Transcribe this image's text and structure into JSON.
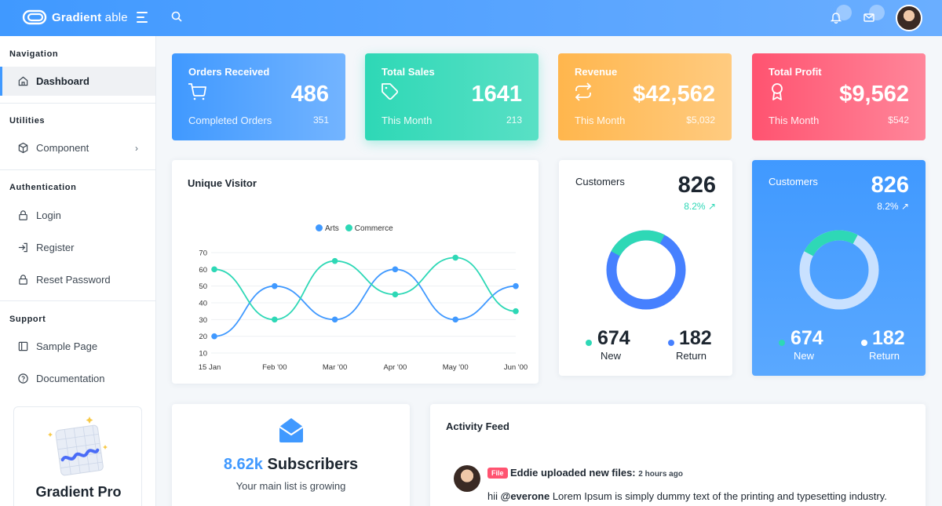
{
  "header": {
    "logo_main": "Gradient",
    "logo_sub": "able"
  },
  "sidebar": {
    "sections": [
      {
        "caption": "Navigation",
        "items": [
          {
            "label": "Dashboard",
            "icon": "home-icon"
          }
        ]
      },
      {
        "caption": "Utilities",
        "items": [
          {
            "label": "Component",
            "icon": "cube-icon"
          }
        ]
      },
      {
        "caption": "Authentication",
        "items": [
          {
            "label": "Login",
            "icon": "lock-icon"
          },
          {
            "label": "Register",
            "icon": "login-icon"
          },
          {
            "label": "Reset Password",
            "icon": "lock-icon"
          }
        ]
      },
      {
        "caption": "Support",
        "items": [
          {
            "label": "Sample Page",
            "icon": "sidebar-icon"
          },
          {
            "label": "Documentation",
            "icon": "help-circle-icon"
          }
        ]
      }
    ],
    "promo_title": "Gradient Pro"
  },
  "stats": [
    {
      "title": "Orders Received",
      "value": "486",
      "sub_label": "Completed Orders",
      "sub_value": "351",
      "icon": "cart-icon",
      "color": "#4099ff"
    },
    {
      "title": "Total Sales",
      "value": "1641",
      "sub_label": "This Month",
      "sub_value": "213",
      "icon": "tag-icon",
      "color": "#2ed8b6"
    },
    {
      "title": "Revenue",
      "value": "$42,562",
      "sub_label": "This Month",
      "sub_value": "$5,032",
      "icon": "repeat-icon",
      "color": "#ffb64d"
    },
    {
      "title": "Total Profit",
      "value": "$9,562",
      "sub_label": "This Month",
      "sub_value": "$542",
      "icon": "award-icon",
      "color": "#ff5370"
    }
  ],
  "visitor": {
    "title": "Unique Visitor"
  },
  "customers": [
    {
      "title": "Customers",
      "value": "826",
      "change": "8.2%",
      "new_value": "674",
      "new_label": "New",
      "return_value": "182",
      "return_label": "Return"
    },
    {
      "title": "Customers",
      "value": "826",
      "change": "8.2%",
      "new_value": "674",
      "new_label": "New",
      "return_value": "182",
      "return_label": "Return"
    }
  ],
  "subscribers": {
    "count": "8.62k",
    "label": "Subscribers",
    "sub": "Your main list is growing"
  },
  "activity": {
    "title": "Activity Feed",
    "badge": "File",
    "headline": "Eddie uploaded new files:",
    "time": "2 hours ago",
    "text_prefix": "hii",
    "mention": "@everone",
    "text_rest": "Lorem Ipsum is simply dummy text of the printing and typesetting industry."
  },
  "colors": {
    "primary": "#4099ff",
    "success": "#2ed8b6",
    "warning": "#ffb64d",
    "danger": "#ff5370"
  },
  "chart_data": {
    "type": "line",
    "title": "Unique Visitor",
    "x": [
      "15 Jan",
      "Feb '00",
      "Mar '00",
      "Apr '00",
      "May '00",
      "Jun '00"
    ],
    "series": [
      {
        "name": "Arts",
        "color": "#4099ff",
        "points": [
          [
            0,
            20
          ],
          [
            1,
            50
          ],
          [
            2,
            30
          ],
          [
            3,
            60
          ],
          [
            4,
            30
          ],
          [
            5,
            50
          ]
        ]
      },
      {
        "name": "Commerce",
        "color": "#2ed8b6",
        "points": [
          [
            0,
            60
          ],
          [
            1,
            30
          ],
          [
            2,
            65
          ],
          [
            3,
            45
          ],
          [
            4,
            67
          ],
          [
            5,
            35
          ]
        ]
      }
    ],
    "ylim": [
      10,
      70
    ],
    "yticks": [
      10,
      20,
      30,
      40,
      50,
      60,
      70
    ],
    "grid": true,
    "legend": "top-center"
  }
}
